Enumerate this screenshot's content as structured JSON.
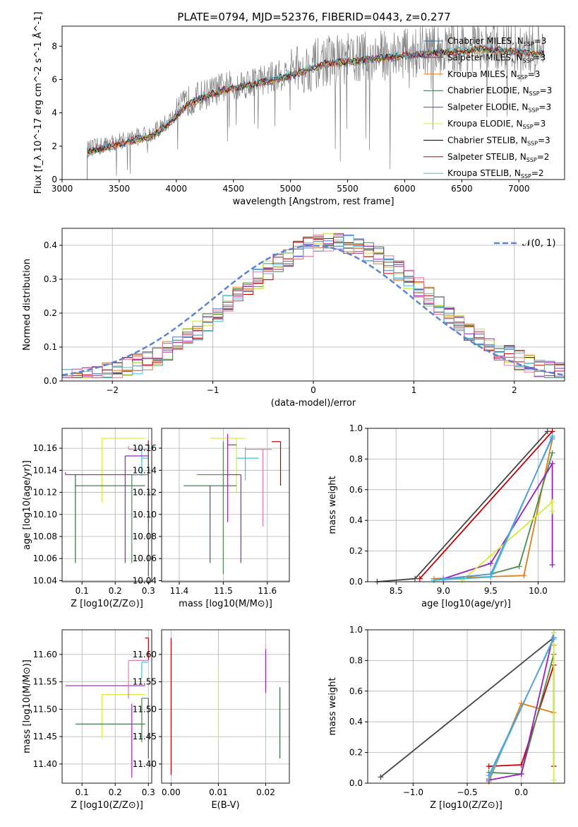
{
  "figure_title": "PLATE=0794, MJD=52376, FIBERID=0443, z=0.277",
  "colors": {
    "series": [
      "#1f77b4",
      "#8c564b",
      "#ff7f0e",
      "#2e6e3e",
      "#9a1fc0",
      "#d4ec3c",
      "#000000",
      "#c00000",
      "#40c0e0"
    ],
    "hist": [
      "#4a7fc4",
      "#8c564b",
      "#e07b1a",
      "#4b8b4b",
      "#a020c0",
      "#c8e040",
      "#555555",
      "#c00000",
      "#40c0e0",
      "#e07ab0"
    ],
    "normal": "#5b84d8"
  },
  "legend_spec": [
    {
      "base": "Chabrier MILES, N",
      "n": "3"
    },
    {
      "base": "Salpeter MILES, N",
      "n": "3"
    },
    {
      "base": "Kroupa MILES, N",
      "n": "3"
    },
    {
      "base": "Chabrier ELODIE, N",
      "n": "3"
    },
    {
      "base": "Salpeter ELODIE, N",
      "n": "3"
    },
    {
      "base": "Kroupa ELODIE, N",
      "n": "3"
    },
    {
      "base": "Chabrier STELIB, N",
      "n": "3"
    },
    {
      "base": "Salpeter STELIB, N",
      "n": "2"
    },
    {
      "base": "Kroupa STELIB, N",
      "n": "2"
    }
  ],
  "legend_subscript": "SSP",
  "chart_data": [
    {
      "type": "line",
      "title": "PLATE=0794, MJD=52376, FIBERID=0443, z=0.277",
      "xlabel": "wavelength [Angstrom, rest frame]",
      "ylabel": "Flux [f_λ 10^-17 erg cm^-2 s^-1 Å^-1]",
      "xlim": [
        3000,
        7400
      ],
      "ylim": [
        0,
        9.2
      ],
      "xticks": [
        3000,
        3500,
        4000,
        4500,
        5000,
        5500,
        6000,
        6500,
        7000
      ],
      "yticks": [
        0,
        2,
        4,
        6,
        8
      ],
      "continuum": {
        "x": [
          3220,
          3500,
          3800,
          3950,
          4100,
          4400,
          4700,
          5000,
          5300,
          5600,
          6000,
          6400,
          6700,
          7000,
          7200
        ],
        "y": [
          1.8,
          2.3,
          2.8,
          3.6,
          4.7,
          5.5,
          5.9,
          6.4,
          7.1,
          7.3,
          7.6,
          7.8,
          8.0,
          7.8,
          7.7
        ]
      },
      "legend_position": "upper right"
    },
    {
      "type": "line",
      "xlabel": "(data-model)/error",
      "ylabel": "Normed distribution",
      "xlim": [
        -2.5,
        2.5
      ],
      "ylim": [
        0,
        0.45
      ],
      "xticks": [
        -2,
        -1,
        0,
        1,
        2
      ],
      "yticks": [
        0.0,
        0.1,
        0.2,
        0.3,
        0.4
      ],
      "legend": "𝒩(0, 1)",
      "legend_position": "upper right",
      "histogram_bins": [
        -2.4,
        -2.2,
        -2.0,
        -1.8,
        -1.6,
        -1.4,
        -1.2,
        -1.0,
        -0.8,
        -0.6,
        -0.4,
        -0.2,
        0.0,
        0.2,
        0.4,
        0.6,
        0.8,
        1.0,
        1.2,
        1.4,
        1.6,
        1.8,
        2.0,
        2.2,
        2.4
      ],
      "histogram_mean": [
        0.025,
        0.04,
        0.05,
        0.07,
        0.1,
        0.13,
        0.17,
        0.24,
        0.31,
        0.33,
        0.37,
        0.4,
        0.4,
        0.39,
        0.38,
        0.36,
        0.32,
        0.29,
        0.22,
        0.18,
        0.14,
        0.1,
        0.07,
        0.05,
        0.04
      ]
    },
    {
      "type": "scatter",
      "xlabel": "Z [log10(Z/Z⊙)]",
      "ylabel": "age  [log10(age/yr)]",
      "xlim": [
        0.04,
        0.31
      ],
      "ylim": [
        10.039,
        10.178
      ],
      "xticks": [
        0.1,
        0.2,
        0.3
      ],
      "yticks": [
        10.04,
        10.06,
        10.08,
        10.1,
        10.12,
        10.14,
        10.16
      ],
      "points": [
        {
          "x": 0.3,
          "xerr": [
            0.01,
            0
          ],
          "y": 10.163,
          "yerr": [
            0.07,
            0.004
          ]
        },
        {
          "x": 0.16,
          "xerr": [
            0,
            0.13
          ],
          "y": 10.169,
          "yerr": [
            0.058,
            0
          ]
        },
        {
          "x": 0.05,
          "xerr": [
            0,
            0.24
          ],
          "y": 10.136,
          "yerr": [
            0,
            0.002
          ]
        },
        {
          "x": 0.08,
          "xerr": [
            0,
            0.21
          ],
          "y": 10.126,
          "yerr": [
            0.07,
            0.01
          ]
        },
        {
          "x": 0.24,
          "xerr": [
            0,
            0.06
          ],
          "y": 10.159,
          "yerr": [
            0,
            0.003
          ]
        },
        {
          "x": 0.28,
          "xerr": [
            0,
            0.02
          ],
          "y": 10.151,
          "yerr": [
            0.016,
            0.009
          ]
        },
        {
          "x": 0.23,
          "xerr": [
            0,
            0.07
          ],
          "y": 10.153,
          "yerr": [
            0.097,
            0
          ]
        },
        {
          "x": 0.25,
          "xerr": [
            0,
            0.05
          ],
          "y": 10.136,
          "yerr": [
            0.08,
            0
          ]
        },
        {
          "x": 0.3,
          "xerr": [
            0,
            0
          ],
          "y": 10.136,
          "yerr": [
            0.092,
            0.03
          ]
        }
      ]
    },
    {
      "type": "scatter",
      "xlabel": "mass [log10(M/M⊙)]",
      "xlim": [
        11.36,
        11.65
      ],
      "ylim": [
        10.039,
        10.178
      ],
      "xticks": [
        11.4,
        11.5,
        11.6
      ],
      "yticks": [
        10.04,
        10.06,
        10.08,
        10.1,
        10.12,
        10.14,
        10.16
      ],
      "points": [
        {
          "x": 11.63,
          "xerr": [
            0.02,
            0
          ],
          "y": 10.166,
          "yerr": [
            0.04,
            0
          ]
        },
        {
          "x": 11.53,
          "xerr": [
            0.06,
            0.02
          ],
          "y": 10.169,
          "yerr": [
            0.05,
            0
          ]
        },
        {
          "x": 11.54,
          "xerr": [
            0.04,
            0
          ],
          "y": 10.136,
          "yerr": [
            0.08,
            0
          ]
        },
        {
          "x": 11.47,
          "xerr": [
            0.06,
            0.06
          ],
          "y": 10.126,
          "yerr": [
            0.07,
            0
          ]
        },
        {
          "x": 11.59,
          "xerr": [
            0.04,
            0.02
          ],
          "y": 10.159,
          "yerr": [
            0.07,
            0
          ]
        },
        {
          "x": 11.55,
          "xerr": [
            0.02,
            0.03
          ],
          "y": 10.151,
          "yerr": [
            0.02,
            0.01
          ]
        },
        {
          "x": 11.51,
          "xerr": [
            0,
            0.02
          ],
          "y": 10.163,
          "yerr": [
            0.07,
            0.01
          ]
        },
        {
          "x": 11.5,
          "xerr": [
            0.06,
            0
          ],
          "y": 10.136,
          "yerr": [
            0.09,
            0.03
          ]
        }
      ]
    },
    {
      "type": "line",
      "xlabel": "age  [log10(age/yr)]",
      "ylabel": "mass weight",
      "xlim": [
        8.2,
        10.28
      ],
      "ylim": [
        0,
        1.0
      ],
      "xticks": [
        8.5,
        9.0,
        9.5,
        10.0
      ],
      "yticks": [
        0.0,
        0.2,
        0.4,
        0.6,
        0.8,
        1.0
      ],
      "series": [
        {
          "x": [
            8.3,
            8.7,
            10.1
          ],
          "y": [
            0.0,
            0.02,
            0.98
          ]
        },
        {
          "x": [
            8.75,
            10.15
          ],
          "y": [
            0.02,
            0.98
          ]
        },
        {
          "x": [
            8.9,
            9.85,
            10.15
          ],
          "y": [
            0.02,
            0.04,
            0.93
          ]
        },
        {
          "x": [
            8.9,
            9.5,
            9.8,
            10.15
          ],
          "y": [
            0.01,
            0.05,
            0.1,
            0.84
          ]
        },
        {
          "x": [
            9.0,
            9.5,
            10.15,
            10.15
          ],
          "y": [
            0.02,
            0.12,
            0.77,
            0.11
          ]
        },
        {
          "x": [
            9.2,
            9.5,
            10.15,
            10.15
          ],
          "y": [
            0.01,
            0.17,
            0.52,
            0.46
          ]
        },
        {
          "x": [
            8.9,
            9.5,
            10.15
          ],
          "y": [
            0.01,
            0.03,
            0.95
          ]
        },
        {
          "x": [
            9.0,
            9.5,
            10.15
          ],
          "y": [
            0.02,
            0.05,
            0.94
          ]
        }
      ]
    },
    {
      "type": "scatter",
      "xlabel": "Z [log10(Z/Z⊙)]",
      "ylabel": "mass [log10(M/M⊙)]",
      "xlim": [
        0.04,
        0.31
      ],
      "ylim": [
        11.365,
        11.645
      ],
      "xticks": [
        0.1,
        0.2,
        0.3
      ],
      "yticks": [
        11.4,
        11.45,
        11.5,
        11.55,
        11.6
      ],
      "points": [
        {
          "x": 0.3,
          "xerr": [
            0.01,
            0
          ],
          "y": 11.63,
          "yerr": [
            0.04,
            0
          ]
        },
        {
          "x": 0.16,
          "xerr": [
            0,
            0.13
          ],
          "y": 11.527,
          "yerr": [
            0.08,
            0
          ]
        },
        {
          "x": 0.05,
          "xerr": [
            0,
            0.24
          ],
          "y": 11.543,
          "yerr": [
            0,
            0
          ]
        },
        {
          "x": 0.08,
          "xerr": [
            0,
            0.21
          ],
          "y": 11.473,
          "yerr": [
            0,
            0
          ]
        },
        {
          "x": 0.24,
          "xerr": [
            0,
            0.06
          ],
          "y": 11.589,
          "yerr": [
            0.07,
            0
          ]
        },
        {
          "x": 0.28,
          "xerr": [
            0,
            0.02
          ],
          "y": 11.586,
          "yerr": [
            0.03,
            0
          ]
        },
        {
          "x": 0.25,
          "xerr": [
            0,
            0
          ],
          "y": 11.51,
          "yerr": [
            0.135,
            0
          ]
        },
        {
          "x": 0.28,
          "xerr": [
            0,
            0.02
          ],
          "y": 11.52,
          "yerr": [
            0.08,
            0
          ]
        },
        {
          "x": 0.3,
          "xerr": [
            0,
            0
          ],
          "y": 11.45,
          "yerr": [
            0.04,
            0.07
          ]
        }
      ]
    },
    {
      "type": "scatter",
      "xlabel": "E(B-V)",
      "xlim": [
        -0.002,
        0.025
      ],
      "ylim": [
        11.365,
        11.645
      ],
      "xticks": [
        0.0,
        0.01,
        0.02
      ],
      "yticks": [
        11.4,
        11.45,
        11.5,
        11.55,
        11.6
      ],
      "points": [
        {
          "x": 0.0,
          "y": 11.58,
          "yerr": [
            0.2,
            0.05
          ]
        },
        {
          "x": 0.01,
          "y": 11.5,
          "yerr": [
            0.06,
            0.08
          ]
        },
        {
          "x": 0.02,
          "y": 11.56,
          "yerr": [
            0.03,
            0.05
          ]
        },
        {
          "x": 0.023,
          "y": 11.47,
          "yerr": [
            0.06,
            0.07
          ]
        }
      ]
    },
    {
      "type": "line",
      "xlabel": "Z [log10(Z/Z⊙)]",
      "ylabel": "mass weight",
      "xlim": [
        -1.42,
        0.4
      ],
      "ylim": [
        0,
        1.0
      ],
      "xticks": [
        -1.0,
        -0.5,
        0.0
      ],
      "yticks": [
        0.0,
        0.2,
        0.4,
        0.6,
        0.8,
        1.0
      ],
      "series": [
        {
          "x": [
            -1.3,
            0.3
          ],
          "y": [
            0.04,
            0.95
          ]
        },
        {
          "x": [
            -0.3,
            0.0,
            0.3,
            0.3
          ],
          "y": [
            0.11,
            0.12,
            0.77,
            0.11
          ]
        },
        {
          "x": [
            -0.3,
            0.0,
            0.3,
            0.3
          ],
          "y": [
            0.01,
            0.52,
            0.46,
            0.9
          ]
        },
        {
          "x": [
            -0.3,
            0.0,
            0.3
          ],
          "y": [
            0.07,
            0.06,
            0.84
          ]
        },
        {
          "x": [
            -0.3,
            0.0,
            0.3
          ],
          "y": [
            0.02,
            0.06,
            0.98
          ]
        },
        {
          "x": [
            0.3,
            0.3
          ],
          "y": [
            0.02,
            0.98
          ]
        },
        {
          "x": [
            -0.3,
            0.3
          ],
          "y": [
            0.03,
            0.95
          ]
        },
        {
          "x": [
            -0.3,
            0.3
          ],
          "y": [
            0.05,
            0.94
          ]
        }
      ]
    }
  ]
}
